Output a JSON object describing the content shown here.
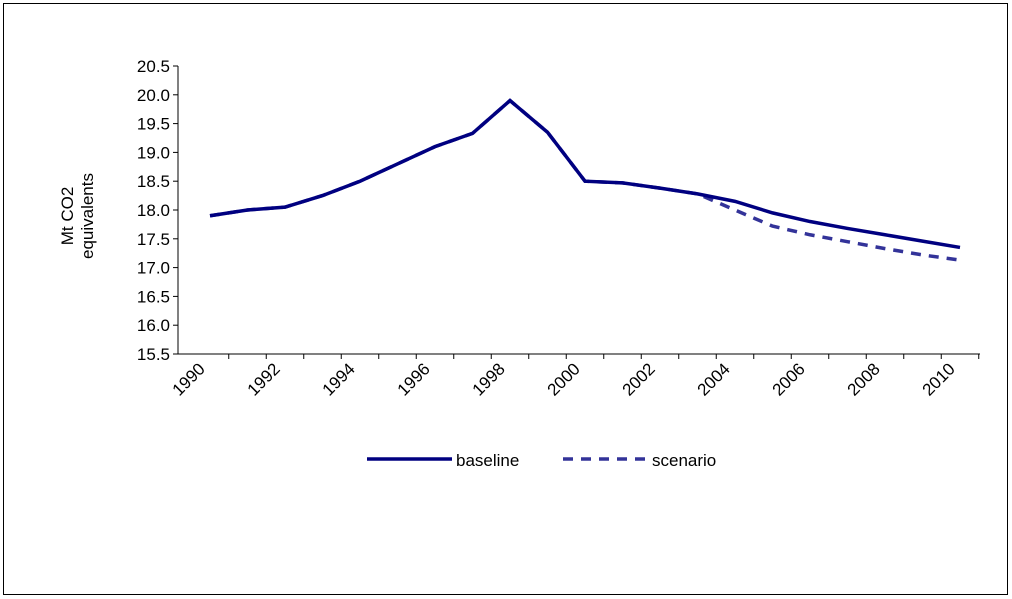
{
  "chart_data": {
    "type": "line",
    "y_label": "Mt CO2 equivalents",
    "categories": [
      "1990",
      null,
      "1992",
      null,
      "1994",
      null,
      "1996",
      null,
      "1998",
      null,
      "2000",
      null,
      "2002",
      null,
      "2004",
      null,
      "2006",
      null,
      "2008",
      null,
      "2010"
    ],
    "series": [
      {
        "name": "baseline",
        "color": "#000080",
        "dashed": false,
        "values": [
          17.9,
          18.0,
          18.05,
          18.25,
          18.5,
          18.8,
          19.1,
          19.33,
          19.9,
          19.35,
          18.5,
          18.47,
          18.38,
          18.28,
          18.15,
          17.95,
          17.8,
          17.68,
          17.57,
          17.46,
          17.35
        ]
      },
      {
        "name": "scenario",
        "color": "#333399",
        "dashed": true,
        "values": [
          17.9,
          18.0,
          18.05,
          18.25,
          18.5,
          18.8,
          19.1,
          19.33,
          19.9,
          19.35,
          18.5,
          18.47,
          18.38,
          18.28,
          18.0,
          17.72,
          17.57,
          17.45,
          17.33,
          17.22,
          17.13
        ]
      }
    ],
    "ylim": [
      15.5,
      20.5
    ],
    "yticks": [
      15.5,
      {
        "value": 16,
        "label": "16.0"
      },
      16.5,
      {
        "value": 17,
        "label": "17.0"
      },
      17.5,
      {
        "value": 18,
        "label": "18.0"
      },
      18.5,
      {
        "value": 19,
        "label": "19.0"
      },
      19.5,
      {
        "value": 20,
        "label": "20.0"
      },
      20.5
    ],
    "legend": "bottom"
  }
}
